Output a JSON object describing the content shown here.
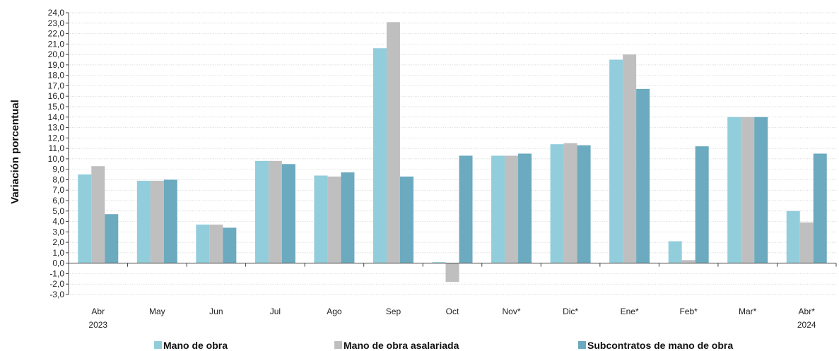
{
  "chart_data": {
    "type": "bar",
    "ylabel": "Variación porcentual",
    "xlabel": "",
    "title": "",
    "ylim": [
      -3.0,
      24.0
    ],
    "ytick_step": 1.0,
    "grid": true,
    "legend_position": "bottom",
    "categories": [
      "Abr",
      "May",
      "Jun",
      "Jul",
      "Ago",
      "Sep",
      "Oct",
      "Nov*",
      "Dic*",
      "Ene*",
      "Feb*",
      "Mar*",
      "Abr*"
    ],
    "category_sublabels": [
      "2023",
      "",
      "",
      "",
      "",
      "",
      "",
      "",
      "",
      "",
      "",
      "",
      "2024"
    ],
    "series": [
      {
        "name": "Mano de obra",
        "color": "#92CDDC",
        "values": [
          8.5,
          7.9,
          3.7,
          9.8,
          8.4,
          20.6,
          0.1,
          10.3,
          11.4,
          19.5,
          2.1,
          14.0,
          5.0
        ]
      },
      {
        "name": "Mano de obra asalariada",
        "color": "#BFBFBF",
        "values": [
          9.3,
          7.9,
          3.7,
          9.8,
          8.3,
          23.1,
          -1.8,
          10.3,
          11.5,
          20.0,
          0.3,
          14.0,
          3.9
        ]
      },
      {
        "name": "Subcontratos de mano de obra",
        "color": "#6BAABF",
        "values": [
          4.7,
          8.0,
          3.4,
          9.5,
          8.7,
          8.3,
          10.3,
          10.5,
          11.3,
          16.7,
          11.2,
          14.0,
          10.5
        ]
      }
    ]
  }
}
